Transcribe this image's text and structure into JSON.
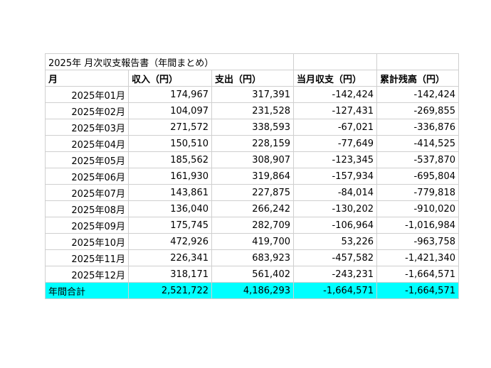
{
  "sheet": {
    "title": "2025年 月次収支報告書（年間まとめ）",
    "headers": [
      "月",
      "収入（円）",
      "支出（円）",
      "当月収支（円）",
      "累計残高（円）"
    ],
    "rows": [
      {
        "month": "2025年01月",
        "income": "174,967",
        "expense": "317,391",
        "balance": "-142,424",
        "cumulative": "-142,424"
      },
      {
        "month": "2025年02月",
        "income": "104,097",
        "expense": "231,528",
        "balance": "-127,431",
        "cumulative": "-269,855"
      },
      {
        "month": "2025年03月",
        "income": "271,572",
        "expense": "338,593",
        "balance": "-67,021",
        "cumulative": "-336,876"
      },
      {
        "month": "2025年04月",
        "income": "150,510",
        "expense": "228,159",
        "balance": "-77,649",
        "cumulative": "-414,525"
      },
      {
        "month": "2025年05月",
        "income": "185,562",
        "expense": "308,907",
        "balance": "-123,345",
        "cumulative": "-537,870"
      },
      {
        "month": "2025年06月",
        "income": "161,930",
        "expense": "319,864",
        "balance": "-157,934",
        "cumulative": "-695,804"
      },
      {
        "month": "2025年07月",
        "income": "143,861",
        "expense": "227,875",
        "balance": "-84,014",
        "cumulative": "-779,818"
      },
      {
        "month": "2025年08月",
        "income": "136,040",
        "expense": "266,242",
        "balance": "-130,202",
        "cumulative": "-910,020"
      },
      {
        "month": "2025年09月",
        "income": "175,745",
        "expense": "282,709",
        "balance": "-106,964",
        "cumulative": "-1,016,984"
      },
      {
        "month": "2025年10月",
        "income": "472,926",
        "expense": "419,700",
        "balance": "53,226",
        "cumulative": "-963,758"
      },
      {
        "month": "2025年11月",
        "income": "226,341",
        "expense": "683,923",
        "balance": "-457,582",
        "cumulative": "-1,421,340"
      },
      {
        "month": "2025年12月",
        "income": "318,171",
        "expense": "561,402",
        "balance": "-243,231",
        "cumulative": "-1,664,571"
      }
    ],
    "total": {
      "label": "年間合計",
      "income": "2,521,722",
      "expense": "4,186,293",
      "balance": "-1,664,571",
      "cumulative": "-1,664,571"
    },
    "total_highlight_color": "#00ffff"
  }
}
